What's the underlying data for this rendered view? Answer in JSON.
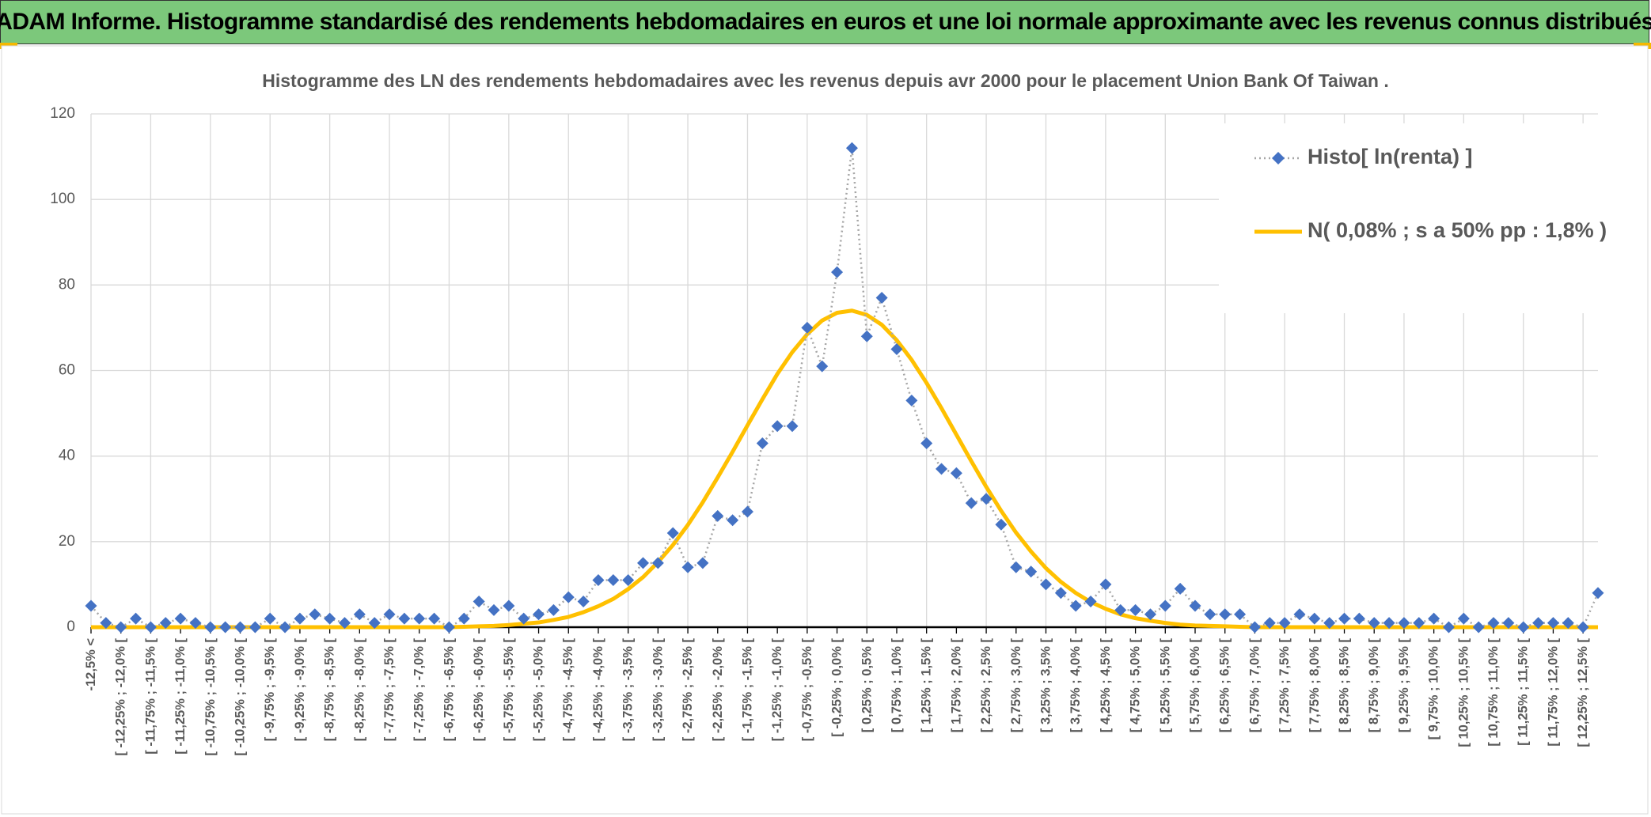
{
  "header": {
    "title": "ADAM Informe. Histogramme standardisé des rendements hebdomadaires en euros et une loi normale approximante avec les revenus connus distribués"
  },
  "chart_data": {
    "type": "line",
    "title": "Histogramme des LN des rendements hebdomadaires avec les revenus depuis avr 2000 pour le placement Union Bank Of Taiwan .",
    "categories": [
      "-12,5% <",
      null,
      "[ -12,25% ; -12,0% [",
      null,
      "[ -11,75% ; -11,5% [",
      null,
      "[ -11,25% ; -11,0% [",
      null,
      "[ -10,75% ; -10,5% [",
      null,
      "[ -10,25% ; -10,0% [",
      null,
      "[ -9,75% ; -9,5% [",
      null,
      "[ -9,25% ; -9,0% [",
      null,
      "[ -8,75% ; -8,5% [",
      null,
      "[ -8,25% ; -8,0% [",
      null,
      "[ -7,75% ; -7,5% [",
      null,
      "[ -7,25% ; -7,0% [",
      null,
      "[ -6,75% ; -6,5% [",
      null,
      "[ -6,25% ; -6,0% [",
      null,
      "[ -5,75% ; -5,5% [",
      null,
      "[ -5,25% ; -5,0% [",
      null,
      "[ -4,75% ; -4,5% [",
      null,
      "[ -4,25% ; -4,0% [",
      null,
      "[ -3,75% ; -3,5% [",
      null,
      "[ -3,25% ; -3,0% [",
      null,
      "[ -2,75% ; -2,5% [",
      null,
      "[ -2,25% ; -2,0% [",
      null,
      "[ -1,75% ; -1,5% [",
      null,
      "[ -1,25% ; -1,0% [",
      null,
      "[ -0,75% ; -0,5% [",
      null,
      "[ -0,25% ; 0,0% [",
      null,
      "[ 0,25% ; 0,5% [",
      null,
      "[ 0,75% ; 1,0% [",
      null,
      "[ 1,25% ; 1,5% [",
      null,
      "[ 1,75% ; 2,0% [",
      null,
      "[ 2,25% ; 2,5% [",
      null,
      "[ 2,75% ; 3,0% [",
      null,
      "[ 3,25% ; 3,5% [",
      null,
      "[ 3,75% ; 4,0% [",
      null,
      "[ 4,25% ; 4,5% [",
      null,
      "[ 4,75% ; 5,0% [",
      null,
      "[ 5,25% ; 5,5% [",
      null,
      "[ 5,75% ; 6,0% [",
      null,
      "[ 6,25% ; 6,5% [",
      null,
      "[ 6,75% ; 7,0% [",
      null,
      "[ 7,25% ; 7,5% [",
      null,
      "[ 7,75% ; 8,0% [",
      null,
      "[ 8,25% ; 8,5% [",
      null,
      "[ 8,75% ; 9,0% [",
      null,
      "[ 9,25% ; 9,5% [",
      null,
      "[ 9,75% ; 10,0% [",
      null,
      "[ 10,25% ; 10,5% [",
      null,
      "[ 10,75% ; 11,0% [",
      null,
      "[ 11,25% ; 11,5% [",
      null,
      "[ 11,75% ; 12,0% [",
      null,
      "[ 12,25% ; 12,5% [",
      null
    ],
    "series": [
      {
        "name": "Histo[ ln(renta) ]",
        "color": "#4472c4",
        "values": [
          5,
          1,
          0,
          2,
          0,
          1,
          2,
          1,
          0,
          0,
          0,
          0,
          2,
          0,
          2,
          3,
          2,
          1,
          3,
          1,
          3,
          2,
          2,
          2,
          0,
          2,
          6,
          4,
          5,
          2,
          3,
          4,
          7,
          6,
          11,
          11,
          11,
          15,
          15,
          22,
          14,
          15,
          26,
          25,
          27,
          43,
          47,
          47,
          70,
          61,
          83,
          112,
          68,
          77,
          65,
          53,
          43,
          37,
          36,
          29,
          30,
          24,
          14,
          13,
          10,
          8,
          5,
          6,
          10,
          4,
          4,
          3,
          5,
          9,
          5,
          3,
          3,
          3,
          0,
          1,
          1,
          3,
          2,
          1,
          2,
          2,
          1,
          1,
          1,
          1,
          2,
          0,
          2,
          0,
          1,
          1,
          0,
          1,
          1,
          1,
          0,
          8
        ]
      },
      {
        "name": "N( 0,08% ; s a 50% pp : 1,8% )",
        "color": "#ffc000",
        "values": [
          0,
          0,
          0,
          0,
          0,
          0,
          0,
          0,
          0,
          0,
          0,
          0,
          0,
          0,
          0,
          0,
          0,
          0,
          0,
          0,
          0,
          0,
          0,
          0,
          0,
          0.1,
          0.2,
          0.3,
          0.5,
          0.8,
          1.1,
          1.7,
          2.4,
          3.5,
          4.9,
          6.6,
          8.9,
          11.7,
          15.2,
          19.2,
          23.9,
          29.2,
          35,
          41,
          47.2,
          53.3,
          59.2,
          64.3,
          68.5,
          71.7,
          73.5,
          74,
          73,
          70.7,
          67.1,
          62.5,
          57.1,
          51.2,
          45,
          38.8,
          32.8,
          27.2,
          22.1,
          17.7,
          13.8,
          10.6,
          8,
          5.9,
          4.3,
          3,
          2.1,
          1.5,
          1,
          0.6,
          0.4,
          0.3,
          0.2,
          0.1,
          0,
          0,
          0,
          0,
          0,
          0,
          0,
          0,
          0,
          0,
          0,
          0,
          0,
          0,
          0,
          0,
          0,
          0,
          0,
          0,
          0,
          0,
          0,
          0
        ]
      }
    ],
    "ylim": [
      0,
      120
    ],
    "yticks": [
      0,
      20,
      40,
      60,
      80,
      100,
      120
    ],
    "grid": true,
    "legend": "top-right"
  }
}
